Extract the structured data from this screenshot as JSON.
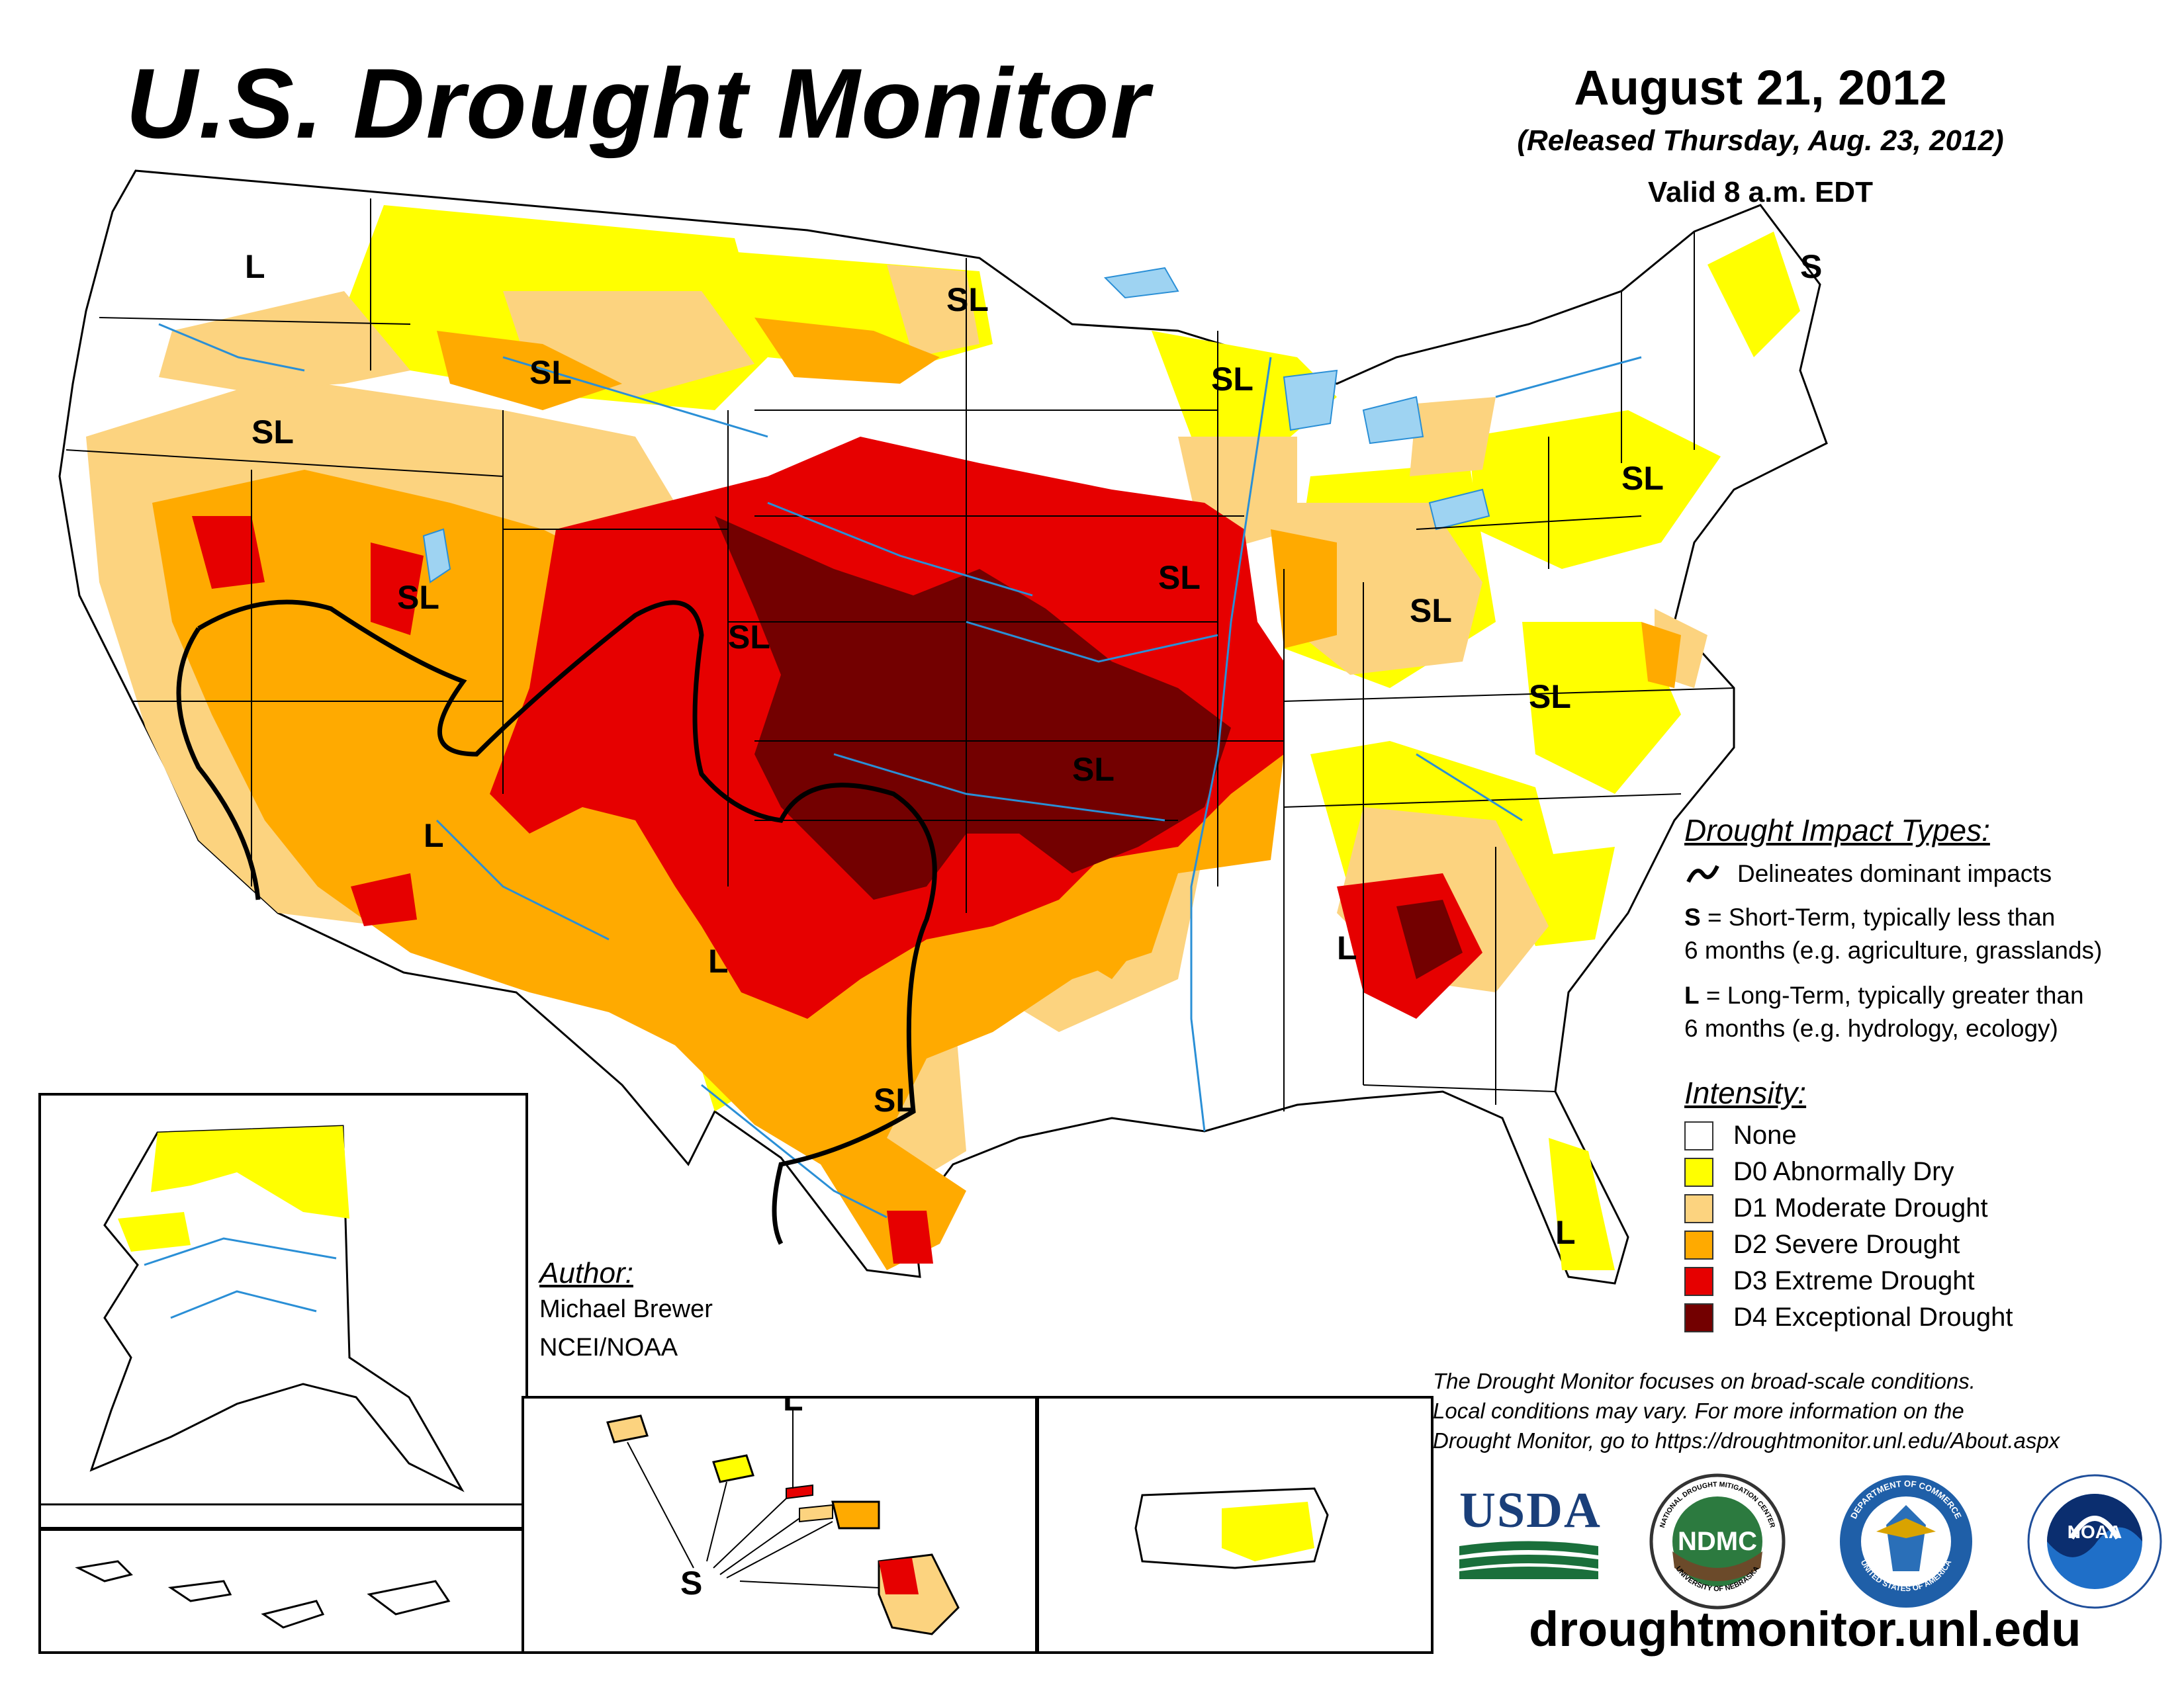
{
  "header": {
    "title": "U.S. Drought Monitor",
    "date": "August 21, 2012",
    "released": "(Released Thursday, Aug. 23, 2012)",
    "valid": "Valid 8 a.m. EDT"
  },
  "map_labels": {
    "sl": "SL",
    "l": "L",
    "s": "S"
  },
  "legend": {
    "impact_title": "Drought Impact Types:",
    "delineates": "Delineates dominant impacts",
    "short_term_key": "S",
    "short_term_line1": " = Short-Term, typically less than",
    "short_term_line2": "6 months (e.g. agriculture, grasslands)",
    "long_term_key": "L",
    "long_term_line1": " = Long-Term, typically greater than",
    "long_term_line2": "6 months (e.g. hydrology, ecology)",
    "intensity_title": "Intensity:",
    "levels": [
      {
        "label": "None",
        "color": "#ffffff"
      },
      {
        "label": "D0 Abnormally Dry",
        "color": "#ffff00"
      },
      {
        "label": "D1 Moderate Drought",
        "color": "#fcd37f"
      },
      {
        "label": "D2 Severe Drought",
        "color": "#ffaa00"
      },
      {
        "label": "D3 Extreme Drought",
        "color": "#e60000"
      },
      {
        "label": "D4 Exceptional Drought",
        "color": "#730000"
      }
    ]
  },
  "author": {
    "heading": "Author:",
    "name": "Michael Brewer",
    "org": "NCEI/NOAA"
  },
  "disclaimer": {
    "line1": "The Drought Monitor focuses on broad-scale conditions.",
    "line2": "Local conditions may vary. For more information on the",
    "line3": "Drought Monitor, go to https://droughtmonitor.unl.edu/About.aspx"
  },
  "logos": {
    "usda": "USDA",
    "ndmc": "NDMC",
    "ndmc_ring_top": "NATIONAL DROUGHT MITIGATION CENTER",
    "ndmc_ring_bottom": "UNIVERSITY OF NEBRASKA",
    "commerce_ring_top": "DEPARTMENT OF COMMERCE",
    "commerce_ring_bottom": "UNITED STATES OF AMERICA",
    "noaa": "NOAA"
  },
  "website": "droughtmonitor.unl.edu"
}
